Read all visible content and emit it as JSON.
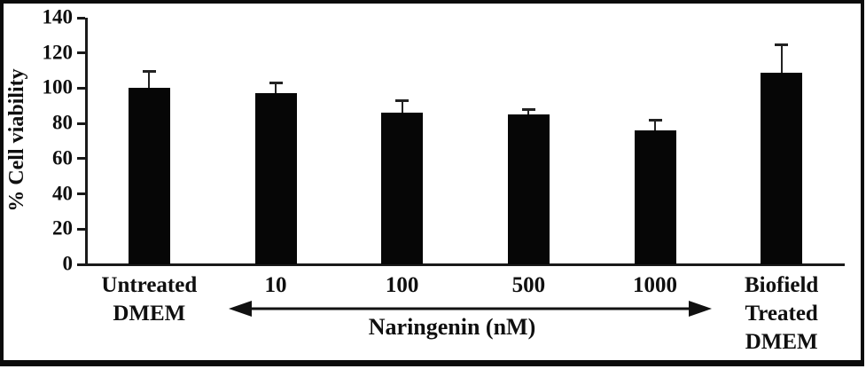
{
  "figure": {
    "background": "#ffffff",
    "frame_color": "#0b0b0b"
  },
  "chart_data": {
    "type": "bar",
    "title": "",
    "xlabel": "",
    "ylabel": "% Cell viability",
    "categories": [
      "Untreated\nDMEM",
      "10",
      "100",
      "500",
      "1000",
      "Biofield\nTreated\nDMEM"
    ],
    "values": [
      100,
      97,
      86,
      85,
      76,
      109
    ],
    "errors_plus": [
      10,
      6,
      7,
      3,
      6,
      16
    ],
    "ylim": [
      0,
      140
    ],
    "yticks": [
      0,
      20,
      40,
      60,
      80,
      100,
      120,
      140
    ],
    "grid": false,
    "legend": null,
    "bar_color": "#060606",
    "error_bar_color": "#222222",
    "annotation": {
      "label": "Naringenin (nM)",
      "arrow_style": "double-headed",
      "arrow_from_category": "10",
      "arrow_to_category": "1000"
    }
  }
}
